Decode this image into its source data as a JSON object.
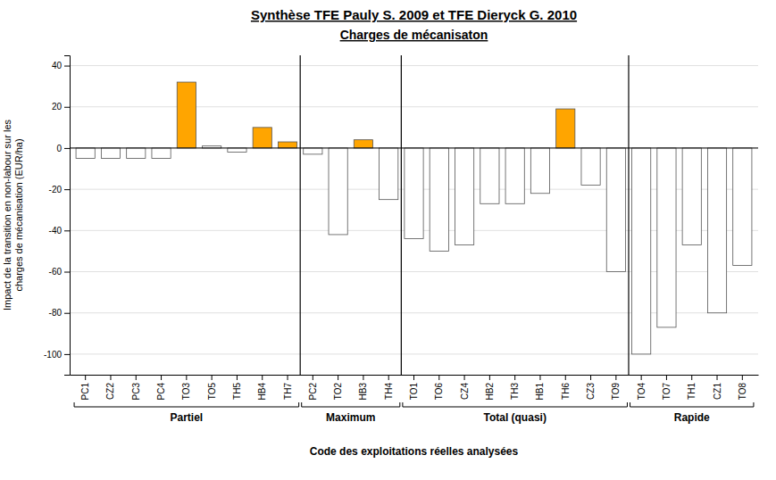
{
  "chart_data": {
    "type": "bar",
    "title": "Synthèse TFE Pauly S. 2009 et TFE Dieryck G. 2010",
    "subtitle": "Charges de mécanisaton",
    "x_label": "Code des exploitations réelles analysées",
    "y_label": "Impact de la transition en non-labour sur les\ncharges de mécanisation (EUR/ha)",
    "categories": [
      "PC1",
      "CZ2",
      "PC3",
      "PC4",
      "TO3",
      "TO5",
      "TH5",
      "HB4",
      "TH7",
      "PC2",
      "TO2",
      "HB3",
      "TH4",
      "TO1",
      "TO6",
      "CZ4",
      "HB2",
      "TH3",
      "HB1",
      "TH6",
      "CZ3",
      "TO9",
      "TO4",
      "TO7",
      "TH1",
      "CZ1",
      "TO8"
    ],
    "values": [
      -5,
      -5,
      -5,
      -5,
      32,
      1,
      -2,
      10,
      3,
      -3,
      -42,
      4,
      -25,
      -44,
      -50,
      -47,
      -27,
      -27,
      -22,
      19,
      -18,
      -60,
      -100,
      -87,
      -47,
      -80,
      -57
    ],
    "colors": [
      "#FFFFFF",
      "#FFFFFF",
      "#FFFFFF",
      "#FFFFFF",
      "#FFA500",
      "#FFFFFF",
      "#FFFFFF",
      "#FFA500",
      "#FFA500",
      "#FFFFFF",
      "#FFFFFF",
      "#FFA500",
      "#FFFFFF",
      "#FFFFFF",
      "#FFFFFF",
      "#FFFFFF",
      "#FFFFFF",
      "#FFFFFF",
      "#FFFFFF",
      "#FFA500",
      "#FFFFFF",
      "#FFFFFF",
      "#FFFFFF",
      "#FFFFFF",
      "#FFFFFF",
      "#FFFFFF",
      "#FFFFFF"
    ],
    "groups": [
      {
        "label": "Partiel",
        "first": "PC1",
        "last": "TH7"
      },
      {
        "label": "Maximum",
        "first": "PC2",
        "last": "TH4"
      },
      {
        "label": "Total (quasi)",
        "first": "TO1",
        "last": "TO9"
      },
      {
        "label": "Rapide",
        "first": "TO4",
        "last": "TO8"
      }
    ],
    "ylim": [
      -110,
      45
    ],
    "yticks": [
      -100,
      -80,
      -60,
      -40,
      -20,
      0,
      20,
      40
    ],
    "grid": true
  }
}
